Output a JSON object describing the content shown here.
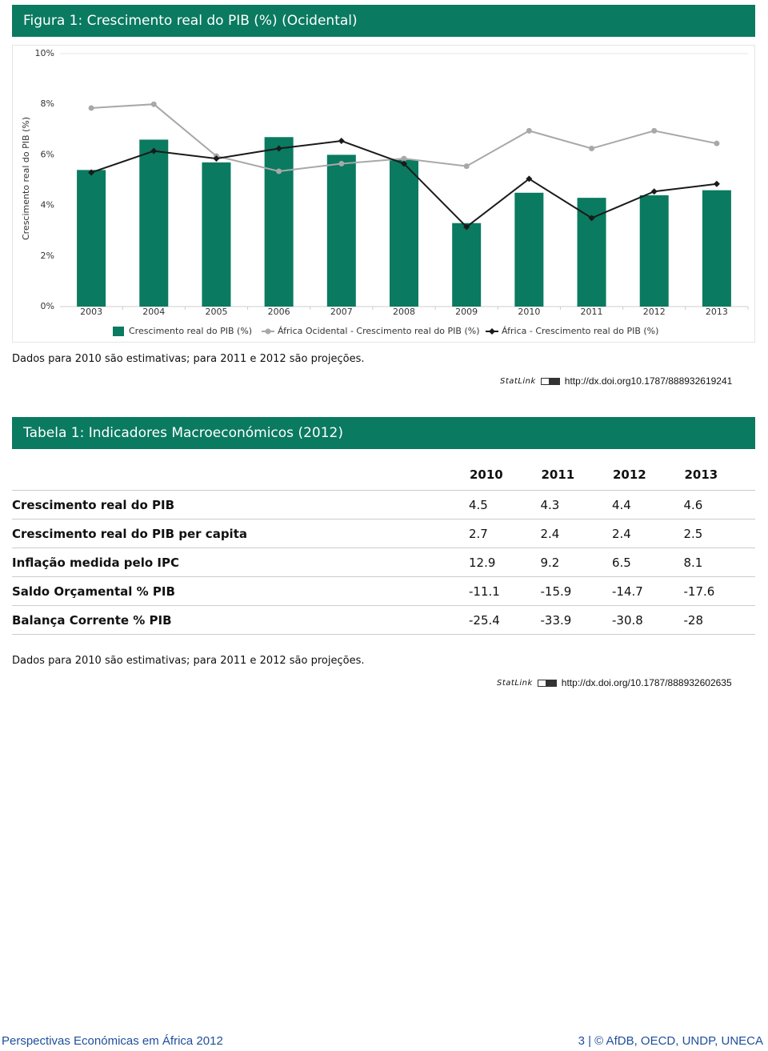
{
  "header": {
    "title": "Figura 1: Crescimento real do PIB (%) (Ocidental)"
  },
  "chart_data": {
    "type": "bar",
    "y_label": "Crescimento real do PIB (%)",
    "categories": [
      "2003",
      "2004",
      "2005",
      "2006",
      "2007",
      "2008",
      "2009",
      "2010",
      "2011",
      "2012",
      "2013"
    ],
    "series": [
      {
        "name": "Crescimento real do PIB (%)",
        "type": "bar",
        "color": "#0a7a60",
        "values": [
          5.4,
          6.6,
          5.7,
          6.7,
          6.0,
          5.8,
          3.3,
          4.5,
          4.3,
          4.4,
          4.6
        ]
      },
      {
        "name": "África Ocidental - Crescimento real do PIB (%)",
        "type": "line",
        "marker": "circle",
        "color": "#a8a8a8",
        "values": [
          7.85,
          8.0,
          5.95,
          5.35,
          5.65,
          5.85,
          5.55,
          6.95,
          6.25,
          6.95,
          6.45
        ]
      },
      {
        "name": "África - Crescimento real do PIB (%)",
        "type": "line",
        "marker": "diamond",
        "color": "#1a1a1a",
        "values": [
          5.3,
          6.15,
          5.85,
          6.25,
          6.55,
          5.65,
          3.15,
          5.05,
          3.5,
          4.55,
          4.85
        ]
      }
    ],
    "ylim": [
      0,
      10
    ],
    "yticks": [
      {
        "value": 0,
        "label": "0%"
      },
      {
        "value": 2,
        "label": "2%"
      },
      {
        "value": 4,
        "label": "4%"
      },
      {
        "value": 6,
        "label": "6%"
      },
      {
        "value": 8,
        "label": "8%"
      },
      {
        "value": 10,
        "label": "10%"
      }
    ],
    "grid": false
  },
  "figure_note": "Dados para 2010 são estimativas; para 2011 e 2012 são projeções.",
  "figure_statlink": {
    "logo": "StatLink",
    "url": "http://dx.doi.org10.1787/888932619241"
  },
  "table": {
    "title": "Tabela 1: Indicadores Macroeconómicos (2012)",
    "columns": [
      2010,
      2011,
      2012,
      2013
    ],
    "rows": [
      [
        "Crescimento real do PIB",
        4.5,
        4.3,
        4.4,
        4.6
      ],
      [
        "Crescimento real do PIB per capita",
        2.7,
        2.4,
        2.4,
        2.5
      ],
      [
        "Inflação medida pelo IPC",
        12.9,
        9.2,
        6.5,
        8.1
      ],
      [
        "Saldo Orçamental % PIB",
        -11.1,
        -15.9,
        -14.7,
        -17.6
      ],
      [
        "Balança Corrente % PIB",
        -25.4,
        -33.9,
        -30.8,
        -28
      ]
    ]
  },
  "table_note": "Dados para 2010 são estimativas; para 2011 e 2012 são projeções.",
  "table_statlink": {
    "logo": "StatLink",
    "url": "http://dx.doi.org/10.1787/888932602635"
  },
  "footer": {
    "left": "Perspectivas Económicas em África 2012",
    "right": "3 | © AfDB, OECD, UNDP, UNECA"
  }
}
